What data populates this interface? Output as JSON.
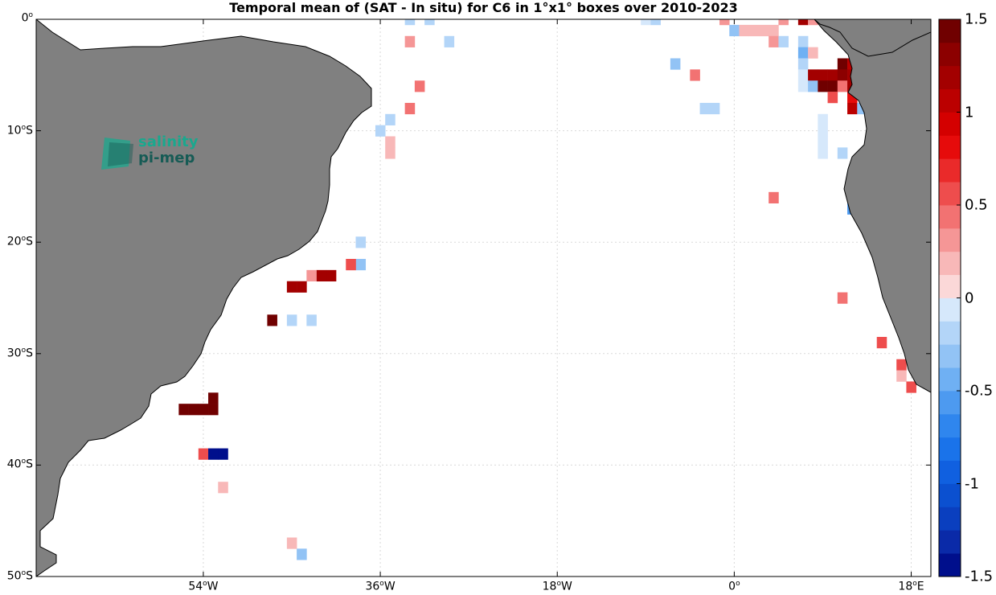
{
  "title": "Temporal mean of (SAT - In situ) for C6 in 1°x1° boxes over 2010-2023",
  "lat_labels": [
    {
      "deg": "0",
      "hem": "",
      "lat": 0
    },
    {
      "deg": "10",
      "hem": "S",
      "lat": -10
    },
    {
      "deg": "20",
      "hem": "S",
      "lat": -20
    },
    {
      "deg": "30",
      "hem": "S",
      "lat": -30
    },
    {
      "deg": "40",
      "hem": "S",
      "lat": -40
    },
    {
      "deg": "50",
      "hem": "S",
      "lat": -50
    }
  ],
  "lon_labels": [
    {
      "deg": "54",
      "hem": "W",
      "lon": -54
    },
    {
      "deg": "36",
      "hem": "W",
      "lon": -36
    },
    {
      "deg": "18",
      "hem": "W",
      "lon": -18
    },
    {
      "deg": "0",
      "hem": "",
      "lon": 0
    },
    {
      "deg": "18",
      "hem": "E",
      "lon": 18
    }
  ],
  "colorbar": {
    "min": -1.5,
    "max": 1.5,
    "ticks": [
      "1.5",
      "1",
      "0.5",
      "0",
      "-0.5",
      "-1",
      "-1.5"
    ],
    "tick_values": [
      1.5,
      1,
      0.5,
      0,
      -0.5,
      -1,
      -1.5
    ]
  },
  "logo": {
    "line1": "salinity",
    "line2": "pi-mep"
  },
  "colors": {
    "land": "#808080",
    "grid": "#d9d9d9",
    "ocean": "#ffffff"
  },
  "chart_data": {
    "type": "heatmap",
    "title": "Temporal mean of (SAT - In situ) for C6 in 1°x1° boxes over 2010-2023",
    "lon_range": [
      -71,
      20
    ],
    "lat_range": [
      -50,
      0
    ],
    "value_range": [
      -1.5,
      1.5
    ],
    "cells": [
      {
        "lon": -33,
        "lat": 0,
        "value": -0.15
      },
      {
        "lon": -31,
        "lat": 0,
        "value": -0.15
      },
      {
        "lon": -29,
        "lat": -2,
        "value": -0.2
      },
      {
        "lon": -33,
        "lat": -2,
        "value": 0.3
      },
      {
        "lon": -32,
        "lat": -6,
        "value": 0.4
      },
      {
        "lon": -33,
        "lat": -8,
        "value": 0.4
      },
      {
        "lon": -35,
        "lat": -9,
        "value": -0.2
      },
      {
        "lon": -36,
        "lat": -10,
        "value": -0.15
      },
      {
        "lon": -35,
        "lat": -11,
        "value": 0.2
      },
      {
        "lon": -35,
        "lat": -12,
        "value": 0.2
      },
      {
        "lon": -38,
        "lat": -20,
        "value": -0.15
      },
      {
        "lon": -38,
        "lat": -22,
        "value": -0.3
      },
      {
        "lon": -39,
        "lat": -22,
        "value": 0.6
      },
      {
        "lon": -41,
        "lat": -23,
        "value": 1.2
      },
      {
        "lon": -42,
        "lat": -23,
        "value": 1.2
      },
      {
        "lon": -43,
        "lat": -23,
        "value": 0.3
      },
      {
        "lon": -44,
        "lat": -24,
        "value": 1.2
      },
      {
        "lon": -45,
        "lat": -24,
        "value": 1.2
      },
      {
        "lon": -47,
        "lat": -27,
        "value": 1.5
      },
      {
        "lon": -45,
        "lat": -27,
        "value": -0.2
      },
      {
        "lon": -43,
        "lat": -27,
        "value": -0.15
      },
      {
        "lon": -53,
        "lat": -34,
        "value": 1.5
      },
      {
        "lon": -53,
        "lat": -35,
        "value": 1.5
      },
      {
        "lon": -54,
        "lat": -35,
        "value": 1.5
      },
      {
        "lon": -55,
        "lat": -35,
        "value": 1.5
      },
      {
        "lon": -56,
        "lat": -35,
        "value": 1.5
      },
      {
        "lon": -54,
        "lat": -39,
        "value": 0.5
      },
      {
        "lon": -53,
        "lat": -39,
        "value": -1.5
      },
      {
        "lon": -52,
        "lat": -39,
        "value": -1.5
      },
      {
        "lon": -52,
        "lat": -42,
        "value": 0.2
      },
      {
        "lon": -45,
        "lat": -47,
        "value": 0.2
      },
      {
        "lon": -44,
        "lat": -48,
        "value": -0.3
      },
      {
        "lon": -9,
        "lat": 0,
        "value": -0.1
      },
      {
        "lon": -8,
        "lat": 0,
        "value": -0.15
      },
      {
        "lon": -1,
        "lat": 0,
        "value": 0.3
      },
      {
        "lon": 0,
        "lat": -1,
        "value": -0.25
      },
      {
        "lon": 1,
        "lat": -1,
        "value": 0.15
      },
      {
        "lon": 2,
        "lat": -1,
        "value": 0.2
      },
      {
        "lon": 3,
        "lat": -1,
        "value": 0.15
      },
      {
        "lon": 4,
        "lat": -1,
        "value": 0.15
      },
      {
        "lon": 5,
        "lat": 0,
        "value": 0.3
      },
      {
        "lon": 7,
        "lat": 0,
        "value": 1.2
      },
      {
        "lon": 8,
        "lat": 0,
        "value": 0.3
      },
      {
        "lon": 4,
        "lat": -2,
        "value": 0.25
      },
      {
        "lon": 5,
        "lat": -2,
        "value": -0.2
      },
      {
        "lon": 7,
        "lat": -2,
        "value": -0.2
      },
      {
        "lon": 7,
        "lat": -3,
        "value": -0.4
      },
      {
        "lon": 8,
        "lat": -3,
        "value": 0.2
      },
      {
        "lon": 7,
        "lat": -4,
        "value": -0.15
      },
      {
        "lon": 11,
        "lat": -4,
        "value": 1.4
      },
      {
        "lon": 12,
        "lat": -4,
        "value": 1.1
      },
      {
        "lon": 7,
        "lat": -5,
        "value": -0.1
      },
      {
        "lon": 8,
        "lat": -5,
        "value": 1.2
      },
      {
        "lon": 9,
        "lat": -5,
        "value": 1.2
      },
      {
        "lon": 10,
        "lat": -5,
        "value": 1.2
      },
      {
        "lon": 11,
        "lat": -5,
        "value": 1.3
      },
      {
        "lon": 12,
        "lat": -5,
        "value": 1.2
      },
      {
        "lon": 7,
        "lat": -6,
        "value": -0.1
      },
      {
        "lon": 8,
        "lat": -6,
        "value": -0.3
      },
      {
        "lon": 9,
        "lat": -6,
        "value": 1.5
      },
      {
        "lon": 10,
        "lat": -6,
        "value": 1.5
      },
      {
        "lon": 11,
        "lat": -6,
        "value": 0.4
      },
      {
        "lon": 12,
        "lat": -6,
        "value": 1.2
      },
      {
        "lon": 10,
        "lat": -7,
        "value": 0.6
      },
      {
        "lon": 12,
        "lat": -7,
        "value": 0.8
      },
      {
        "lon": 12,
        "lat": -8,
        "value": 1.0
      },
      {
        "lon": 13,
        "lat": -8,
        "value": -0.25
      },
      {
        "lon": -6,
        "lat": -4,
        "value": -0.35
      },
      {
        "lon": -4,
        "lat": -5,
        "value": 0.4
      },
      {
        "lon": -3,
        "lat": -8,
        "value": -0.15
      },
      {
        "lon": -2,
        "lat": -8,
        "value": -0.15
      },
      {
        "lon": 9,
        "lat": -9,
        "value": -0.1
      },
      {
        "lon": 9,
        "lat": -10,
        "value": -0.1
      },
      {
        "lon": 9,
        "lat": -11,
        "value": -0.1
      },
      {
        "lon": 9,
        "lat": -12,
        "value": -0.1
      },
      {
        "lon": 11,
        "lat": -12,
        "value": -0.15
      },
      {
        "lon": 4,
        "lat": -16,
        "value": 0.4
      },
      {
        "lon": 12,
        "lat": -17,
        "value": -0.5
      },
      {
        "lon": 11,
        "lat": -25,
        "value": 0.4
      },
      {
        "lon": 15,
        "lat": -29,
        "value": 0.6
      },
      {
        "lon": 17,
        "lat": -31,
        "value": 0.5
      },
      {
        "lon": 17,
        "lat": -32,
        "value": 0.2
      },
      {
        "lon": 18,
        "lat": -33,
        "value": 0.6
      }
    ]
  }
}
